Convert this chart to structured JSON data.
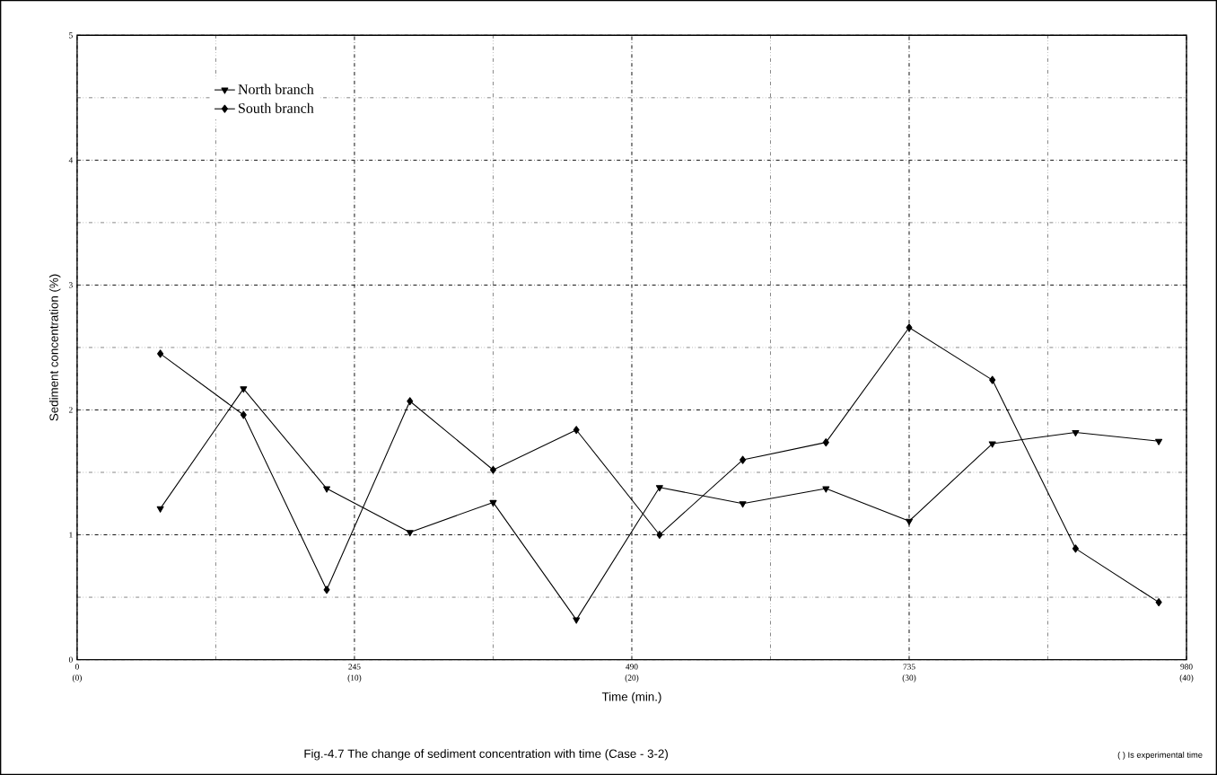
{
  "chart_data": {
    "type": "line",
    "title": "Fig.-4.7    The change of sediment concentration with time (Case - 3-2)",
    "xlabel": "Time (min.)",
    "ylabel": "Sediment concentration (%)",
    "annotations": [
      "(    ) Is experimental time"
    ],
    "x": [
      73.5,
      147,
      220.5,
      294,
      367.5,
      441,
      514.5,
      588,
      661.5,
      735,
      808.5,
      882,
      955.5
    ],
    "series": [
      {
        "name": "North branch",
        "color": "#000000",
        "marker": "triangle",
        "values": [
          1.21,
          2.17,
          1.37,
          1.02,
          1.26,
          0.32,
          1.38,
          1.25,
          1.37,
          1.11,
          1.73,
          1.82,
          1.75
        ]
      },
      {
        "name": "South branch",
        "color": "#000000",
        "marker": "diamond",
        "values": [
          2.45,
          1.96,
          0.56,
          2.07,
          1.52,
          1.84,
          1.0,
          1.6,
          1.74,
          2.66,
          2.24,
          0.89,
          0.46
        ]
      }
    ],
    "xlim": [
      0,
      980
    ],
    "ylim": [
      0,
      5
    ],
    "xticks": [
      0,
      245,
      490,
      735,
      980
    ],
    "x2lim": [
      0,
      40
    ],
    "x2ticks": [
      {
        "value": 0,
        "label": "(0)"
      },
      {
        "value": 10,
        "label": "(10)"
      },
      {
        "value": 20,
        "label": "(20)"
      },
      {
        "value": 30,
        "label": "(30)"
      },
      {
        "value": 40,
        "label": "(40)"
      }
    ],
    "yticks": [
      0,
      1,
      2,
      3,
      4,
      5
    ],
    "grid": true,
    "legend": "top left",
    "line_style": "solid"
  }
}
